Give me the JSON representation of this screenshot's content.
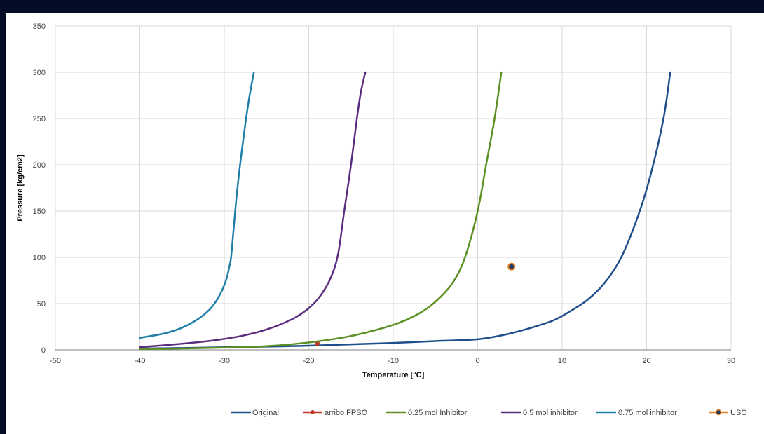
{
  "chart_data": {
    "type": "line",
    "title": "",
    "xlabel": "Temperature [°C]",
    "ylabel": "Pressure [kg/cm2]",
    "xlim": [
      -50,
      30
    ],
    "ylim": [
      0,
      350
    ],
    "x_ticks": [
      -50,
      -40,
      -30,
      -20,
      -10,
      0,
      10,
      20,
      30
    ],
    "y_ticks": [
      0,
      50,
      100,
      150,
      200,
      250,
      300,
      350
    ],
    "grid": true,
    "legend_position": "bottom",
    "series": [
      {
        "name": "Original",
        "color": "#1f4e8c",
        "marker": "none",
        "x": [
          -40,
          -35,
          -30,
          -25,
          -20,
          -15,
          -10,
          -5,
          0,
          3,
          6,
          9,
          11,
          13,
          15,
          17,
          19,
          20.5,
          22,
          22.8
        ],
        "y": [
          1.5,
          2,
          2.8,
          3.5,
          4.5,
          6,
          7.5,
          9.5,
          11.5,
          16,
          23,
          32,
          42,
          54,
          72,
          100,
          145,
          190,
          250,
          300
        ]
      },
      {
        "name": "arribo FPSO",
        "color": "#c0392b",
        "marker": "circle",
        "x": [
          -19
        ],
        "y": [
          7
        ]
      },
      {
        "name": "0.25 mol Inhibitor",
        "color": "#5b8f22",
        "marker": "none",
        "x": [
          -40,
          -35,
          -30,
          -25,
          -20,
          -15,
          -10,
          -7,
          -5,
          -3,
          -1.5,
          0,
          1,
          2,
          2.8
        ],
        "y": [
          1,
          1.5,
          2.5,
          4,
          8,
          15,
          27,
          39,
          52,
          72,
          100,
          150,
          200,
          250,
          300
        ]
      },
      {
        "name": "0.5 mol inhibitor",
        "color": "#5b2c7f",
        "marker": "none",
        "x": [
          -40,
          -37,
          -34,
          -31,
          -28,
          -25,
          -22,
          -20,
          -18.5,
          -17.3,
          -16.5,
          -15.8,
          -15,
          -14.3,
          -13.8,
          -13.3
        ],
        "y": [
          3,
          5,
          7.5,
          10.5,
          15,
          22,
          33,
          45,
          60,
          80,
          105,
          150,
          200,
          250,
          280,
          300
        ]
      },
      {
        "name": "0.75 mol inhibitor",
        "color": "#1f7fa8",
        "marker": "none",
        "x": [
          -40,
          -37,
          -35,
          -33,
          -31.5,
          -30.5,
          -29.8,
          -29.4,
          -29.2,
          -28.9,
          -28.5,
          -28,
          -27.5,
          -27,
          -26.5
        ],
        "y": [
          13,
          18,
          24,
          34,
          46,
          60,
          75,
          90,
          100,
          130,
          170,
          210,
          245,
          275,
          300
        ]
      },
      {
        "name": "USC",
        "color": "#e67e22",
        "fill": "#1f3a5f",
        "marker": "circle",
        "x": [
          4
        ],
        "y": [
          90
        ]
      }
    ]
  }
}
